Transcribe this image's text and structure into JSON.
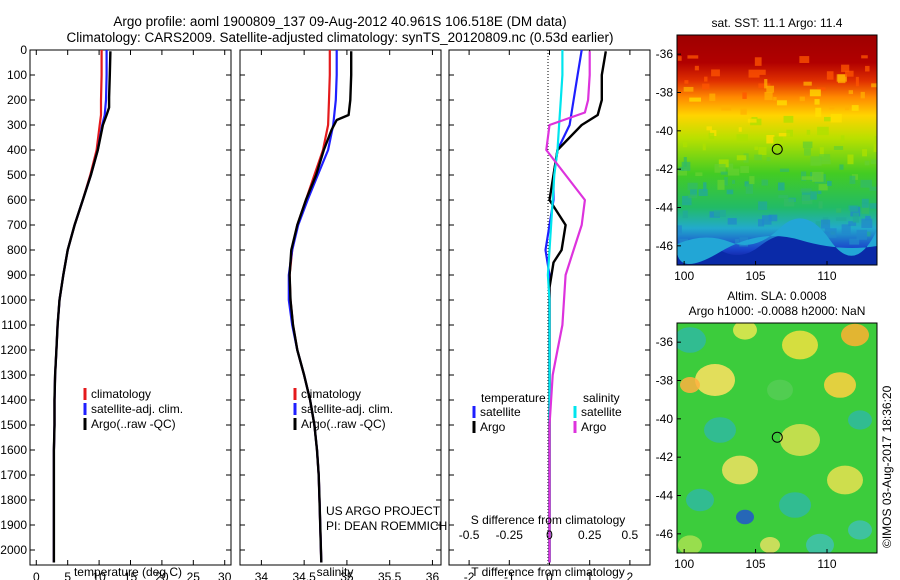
{
  "header": {
    "title_line1": "Argo profile: aoml 1900809_137 09-Aug-2012 40.961S 106.518E (DM data)",
    "title_line2": "Climatology: CARS2009. Satellite-adjusted climatology: synTS_20120809.nc (0.53d earlier)"
  },
  "depth_ticks": [
    0,
    100,
    200,
    300,
    400,
    500,
    600,
    700,
    800,
    900,
    1000,
    1100,
    1200,
    1300,
    1400,
    1500,
    1600,
    1700,
    1800,
    1900,
    2000
  ],
  "colors": {
    "climatology": "#e41a1c",
    "satellite": "#1f1fff",
    "argo": "#000000",
    "sal_sat": "#00e5ee",
    "sal_argo": "#dd33dd"
  },
  "chart_data": [
    {
      "type": "line",
      "panel": "temperature",
      "xlabel": "temperature (deg C)",
      "xlim": [
        -1,
        31
      ],
      "xticks": [
        0,
        5,
        10,
        15,
        20,
        25,
        30
      ],
      "ylim": [
        2060,
        0
      ],
      "legend": [
        "climatology",
        "satellite-adj. clim.",
        "Argo(..raw -QC)"
      ],
      "series": [
        {
          "name": "climatology",
          "x": [
            10.4,
            10.4,
            10.3,
            10.3,
            10.1,
            9.6,
            8.6,
            7.4,
            6.1,
            5.0,
            4.3,
            3.7,
            3.4,
            3.2,
            3.0,
            2.9,
            2.9,
            2.8,
            2.8,
            2.8,
            2.8,
            2.8
          ],
          "y": [
            0,
            100,
            200,
            260,
            300,
            400,
            500,
            600,
            700,
            800,
            900,
            1000,
            1100,
            1200,
            1300,
            1400,
            1500,
            1600,
            1700,
            1800,
            1900,
            2050
          ]
        },
        {
          "name": "satellite-adj. clim.",
          "x": [
            11.2,
            11.2,
            11.1,
            10.9,
            10.5,
            9.8,
            8.7,
            7.4,
            6.1,
            5.0,
            4.3,
            3.7,
            3.4,
            3.2,
            3.0,
            2.9,
            2.9,
            2.8,
            2.8,
            2.8,
            2.8,
            2.8
          ],
          "y": [
            0,
            100,
            200,
            260,
            300,
            400,
            500,
            600,
            700,
            800,
            900,
            1000,
            1100,
            1200,
            1300,
            1400,
            1500,
            1600,
            1700,
            1800,
            1900,
            2050
          ]
        },
        {
          "name": "Argo(..raw -QC)",
          "x": [
            11.8,
            11.7,
            11.6,
            11.6,
            11.2,
            10.6,
            9.8,
            8.7,
            7.4,
            6.1,
            5.0,
            4.3,
            3.7,
            3.4,
            3.2,
            3.0,
            2.9,
            2.9,
            2.8,
            2.8,
            2.8,
            2.8,
            2.8
          ],
          "y": [
            5,
            100,
            190,
            230,
            260,
            300,
            400,
            500,
            600,
            700,
            800,
            900,
            1000,
            1100,
            1200,
            1300,
            1400,
            1500,
            1600,
            1700,
            1800,
            1900,
            2050
          ]
        }
      ]
    },
    {
      "type": "line",
      "panel": "salinity",
      "xlabel": "salinity",
      "xlim": [
        33.75,
        36.1
      ],
      "xticks": [
        34,
        34.5,
        35,
        35.5,
        36
      ],
      "ylim": [
        2060,
        0
      ],
      "legend": [
        "climatology",
        "satellite-adj. clim.",
        "Argo(..raw -QC)"
      ],
      "annotations": [
        "US ARGO PROJECT",
        "PI: DEAN ROEMMICH"
      ],
      "series": [
        {
          "name": "climatology",
          "x": [
            34.8,
            34.8,
            34.79,
            34.78,
            34.72,
            34.62,
            34.52,
            34.42,
            34.36,
            34.33,
            34.34,
            34.37,
            34.42,
            34.5,
            34.57,
            34.62,
            34.65,
            34.67,
            34.68,
            34.7
          ],
          "y": [
            0,
            100,
            200,
            300,
            400,
            500,
            600,
            700,
            800,
            900,
            1000,
            1100,
            1200,
            1300,
            1400,
            1500,
            1600,
            1700,
            1800,
            2050
          ]
        },
        {
          "name": "satellite-adj. clim.",
          "x": [
            34.88,
            34.88,
            34.87,
            34.84,
            34.78,
            34.66,
            34.54,
            34.43,
            34.36,
            34.32,
            34.32,
            34.36,
            34.42,
            34.5,
            34.57,
            34.62,
            34.65,
            34.67,
            34.68,
            34.7
          ],
          "y": [
            0,
            100,
            200,
            300,
            400,
            500,
            600,
            700,
            800,
            900,
            1000,
            1100,
            1200,
            1300,
            1400,
            1500,
            1600,
            1700,
            1800,
            2050
          ]
        },
        {
          "name": "Argo(..raw -QC)",
          "x": [
            35.05,
            35.05,
            35.04,
            35.02,
            34.88,
            34.82,
            34.73,
            34.64,
            34.52,
            34.42,
            34.35,
            34.33,
            34.34,
            34.37,
            34.42,
            34.5,
            34.57,
            34.62,
            34.65,
            34.67,
            34.68,
            34.7
          ],
          "y": [
            5,
            100,
            200,
            260,
            280,
            320,
            400,
            500,
            600,
            700,
            800,
            900,
            1000,
            1100,
            1200,
            1300,
            1400,
            1500,
            1600,
            1700,
            1800,
            2050
          ]
        }
      ]
    },
    {
      "type": "line",
      "panel": "difference",
      "xlabel": "T difference from climatology",
      "xlabel_top": "S difference from climatology",
      "xlim": [
        -2.5,
        2.5
      ],
      "xticks": [
        -2,
        -1,
        0,
        1,
        2
      ],
      "xtick_labels_top": [
        "-0.5",
        "-0.25",
        "0",
        "0.25",
        "0.5"
      ],
      "xlim_top": [
        -0.625,
        0.625
      ],
      "ylim": [
        2060,
        0
      ],
      "legend_heads": [
        "temperature",
        "salinity"
      ],
      "legend": [
        "satellite",
        "Argo",
        "satellite",
        "Argo"
      ],
      "series": [
        {
          "name": "T satellite",
          "x": [
            0.8,
            0.7,
            0.6,
            0.5,
            0.2,
            0.1,
            0.1,
            0.0,
            -0.1,
            0.0,
            0.0,
            0.0,
            0.0,
            0.0,
            0.0,
            0.0,
            0.0,
            0.0,
            0.0,
            0.0
          ],
          "y": [
            0,
            100,
            200,
            300,
            400,
            500,
            600,
            700,
            800,
            900,
            1000,
            1100,
            1200,
            1300,
            1400,
            1500,
            1600,
            1700,
            1800,
            2050
          ]
        },
        {
          "name": "T Argo",
          "x": [
            1.4,
            1.3,
            1.3,
            1.2,
            0.8,
            0.2,
            0.1,
            0.0,
            0.4,
            0.3,
            0.1,
            0.0,
            0.0,
            0.0,
            0.0,
            0.0,
            0.0,
            0.0,
            0.0,
            0.0,
            0.0
          ],
          "y": [
            5,
            100,
            200,
            260,
            300,
            400,
            500,
            600,
            700,
            800,
            850,
            950,
            1100,
            1200,
            1300,
            1400,
            1500,
            1600,
            1700,
            1800,
            2050
          ]
        },
        {
          "name": "S satellite",
          "x": [
            0.08,
            0.08,
            0.07,
            0.06,
            0.05,
            0.03,
            0.02,
            0.01,
            0.0,
            -0.01,
            0.0,
            0.0,
            0.0,
            0.0,
            0.0
          ],
          "y": [
            0,
            100,
            200,
            300,
            400,
            500,
            600,
            700,
            800,
            900,
            1000,
            1200,
            1400,
            1600,
            2050
          ]
        },
        {
          "name": "S Argo",
          "x": [
            0.25,
            0.25,
            0.24,
            0.22,
            0.0,
            -0.02,
            0.1,
            0.22,
            0.2,
            0.15,
            0.1,
            0.09,
            0.08,
            0.05,
            0.02,
            0.01,
            0.0,
            0.0,
            0.0,
            0.0,
            0.0
          ],
          "y": [
            5,
            100,
            200,
            250,
            300,
            400,
            500,
            600,
            700,
            800,
            900,
            1000,
            1100,
            1200,
            1300,
            1400,
            1500,
            1600,
            1700,
            1800,
            2050
          ]
        }
      ]
    },
    {
      "type": "heatmap",
      "panel": "sst-map",
      "title": "sat. SST: 11.1  Argo: 11.4",
      "xlim": [
        99.5,
        113.5
      ],
      "ylim": [
        -47,
        -35
      ],
      "xticks": [
        100,
        105,
        110
      ],
      "yticks": [
        -36,
        -38,
        -40,
        -42,
        -44,
        -46
      ],
      "marker": {
        "lon": 106.518,
        "lat": -40.961
      }
    },
    {
      "type": "heatmap",
      "panel": "sla-map",
      "title_line1": "Altim. SLA: 0.0008",
      "title_line2": "Argo h1000: -0.0088 h2000: NaN",
      "xlim": [
        99.5,
        113.5
      ],
      "ylim": [
        -47,
        -35
      ],
      "xticks": [
        100,
        105,
        110
      ],
      "yticks": [
        -36,
        -38,
        -40,
        -42,
        -44,
        -46
      ],
      "marker": {
        "lon": 106.518,
        "lat": -40.961
      }
    }
  ],
  "footer": {
    "credit": "©IMOS 03-Aug-2017 18:36:20"
  }
}
